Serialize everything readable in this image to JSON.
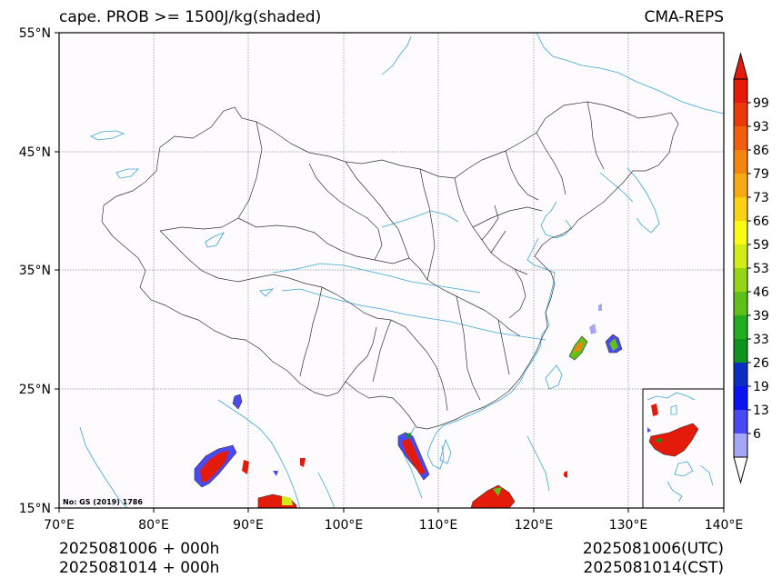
{
  "title_left": "cape. PROB >= 1500J/kg(shaded)",
  "title_right": "CMA-REPS",
  "bottom_left": [
    "2025081006  +  000h",
    "2025081014  +  000h"
  ],
  "bottom_right": [
    "2025081006(UTC)",
    "2025081014(CST)"
  ],
  "approval_note": "No: GS (2019) 1786",
  "map": {
    "lon_range": [
      70,
      140
    ],
    "lat_range": [
      15,
      55
    ],
    "lon_ticks": [
      "70°E",
      "80°E",
      "90°E",
      "100°E",
      "110°E",
      "120°E",
      "130°E",
      "140°E"
    ],
    "lat_ticks": [
      "15°N",
      "25°N",
      "35°N",
      "45°N",
      "55°N"
    ],
    "grid": true,
    "inset": "south-china-sea, bottom-right",
    "background_color": "#fdfbfd",
    "boundary_color": "#333333",
    "water_color": "#3aa6d8"
  },
  "colorbar": {
    "orientation": "vertical",
    "labels": [
      "6",
      "13",
      "19",
      "26",
      "33",
      "39",
      "46",
      "53",
      "59",
      "66",
      "73",
      "79",
      "86",
      "93",
      "99"
    ],
    "colors": [
      "#a6a6f7",
      "#4a4af5",
      "#0a14f0",
      "#0c2ec2",
      "#10921e",
      "#22ac22",
      "#5ec018",
      "#96d416",
      "#d2ea16",
      "#fafa14",
      "#fad214",
      "#f8aa12",
      "#f48610",
      "#f0600e",
      "#ea3a0c",
      "#e41a0a"
    ]
  }
}
